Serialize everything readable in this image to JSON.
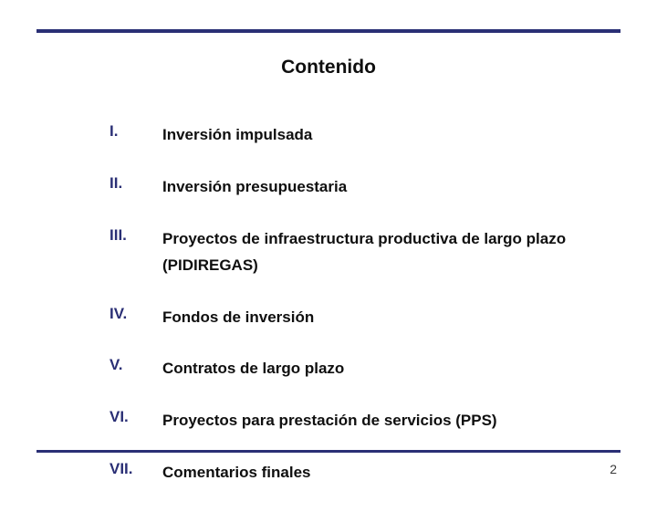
{
  "title": "Contenido",
  "title_fontsize": 21,
  "title_color": "#0f0f0f",
  "rule_color": "#2a2f75",
  "numeral_color": "#2a2f75",
  "text_color": "#0f0f0f",
  "item_fontsize": 17,
  "page_number": "2",
  "page_number_color": "#3a3a3a",
  "items": [
    {
      "num": "I.",
      "text": "Inversión impulsada"
    },
    {
      "num": "II.",
      "text": "Inversión presupuestaria"
    },
    {
      "num": "III.",
      "text": "Proyectos de infraestructura productiva de largo plazo (PIDIREGAS)"
    },
    {
      "num": "IV.",
      "text": "Fondos de inversión"
    },
    {
      "num": "V.",
      "text": "Contratos de largo plazo"
    },
    {
      "num": "VI.",
      "text": "Proyectos para prestación de servicios (PPS)"
    },
    {
      "num": "VII.",
      "text": "Comentarios finales"
    }
  ]
}
